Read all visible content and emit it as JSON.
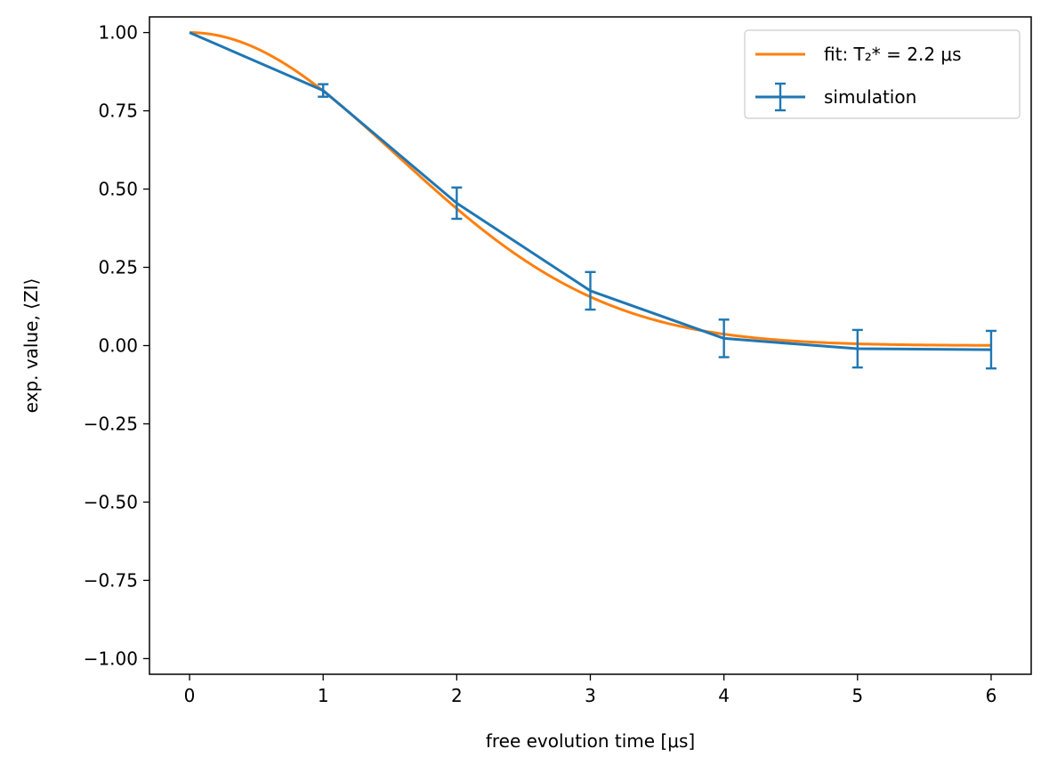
{
  "chart_data": {
    "type": "line",
    "xlabel": "free evolution time [μs]",
    "ylabel": "exp. value, ⟨ZI⟩",
    "xlim": [
      -0.3,
      6.3
    ],
    "ylim": [
      -1.05,
      1.05
    ],
    "xticks": [
      0,
      1,
      2,
      3,
      4,
      5,
      6
    ],
    "yticks": [
      -1.0,
      -0.75,
      -0.5,
      -0.25,
      0.0,
      0.25,
      0.5,
      0.75,
      1.0
    ],
    "xtick_labels": [
      "0",
      "1",
      "2",
      "3",
      "4",
      "5",
      "6"
    ],
    "ytick_labels": [
      "−1.00",
      "−0.75",
      "−0.50",
      "−0.25",
      "0.00",
      "0.25",
      "0.50",
      "0.75",
      "1.00"
    ],
    "grid": false,
    "legend_position": "top-right",
    "series": [
      {
        "name": "fit: T₂* = 2.2 μs",
        "kind": "fit-curve",
        "color": "#ff7f0e",
        "model": "gaussian-decay",
        "T2_star": 2.2
      },
      {
        "name": "simulation",
        "kind": "errorbar",
        "color": "#1f77b4",
        "x": [
          0,
          1,
          2,
          3,
          4,
          5,
          6
        ],
        "y": [
          1.0,
          0.815,
          0.455,
          0.175,
          0.023,
          -0.01,
          -0.013
        ],
        "yerr": [
          0.0,
          0.02,
          0.05,
          0.06,
          0.06,
          0.06,
          0.06
        ]
      }
    ]
  }
}
